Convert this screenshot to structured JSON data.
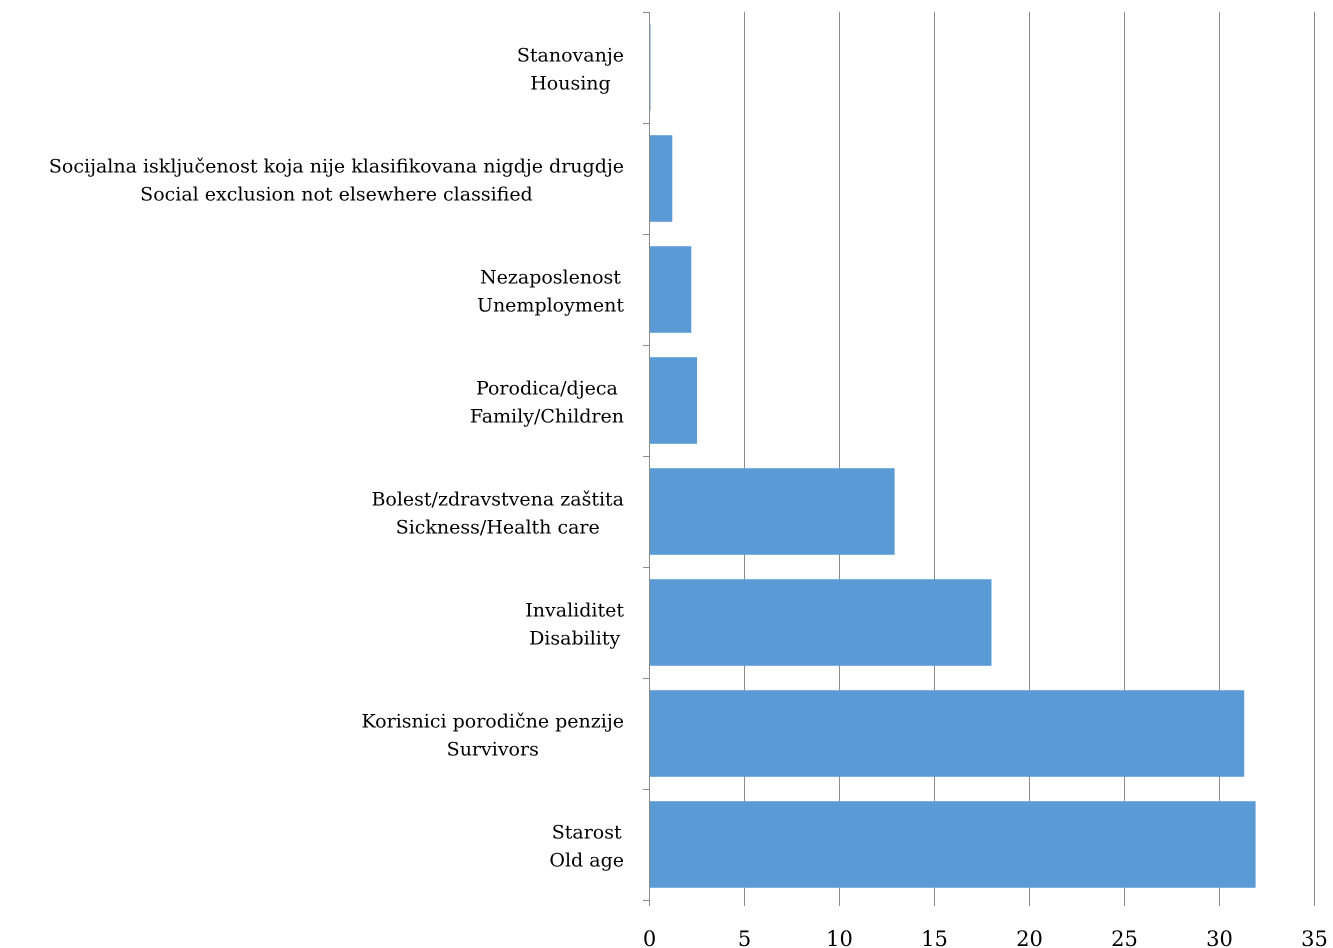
{
  "chart_data": {
    "type": "bar",
    "orientation": "horizontal",
    "title": "",
    "xlabel": "",
    "ylabel": "",
    "xlim": [
      0,
      35
    ],
    "x_ticks": [
      0,
      5,
      10,
      15,
      20,
      25,
      30,
      35
    ],
    "grid": "vertical",
    "legend": "none",
    "bar_color": "#5b9bd5",
    "categories": [
      {
        "line1": "Stanovanje",
        "line2": "Housing",
        "value": 0.05
      },
      {
        "line1": "Socijalna isključenost koja nije klasifikovana nigdje drugdje",
        "line2": "Social exclusion not elsewhere classified",
        "value": 1.2
      },
      {
        "line1": "Nezaposlenost",
        "line2": "Unemployment",
        "value": 2.2
      },
      {
        "line1": "Porodica/djeca",
        "line2": "Family/Children",
        "value": 2.5
      },
      {
        "line1": "Bolest/zdravstvena zaštita",
        "line2": "Sickness/Health care",
        "value": 12.9
      },
      {
        "line1": "Invaliditet",
        "line2": "Disability",
        "value": 18.0
      },
      {
        "line1": "Korisnici porodične penzije",
        "line2": "Survivors",
        "value": 31.3
      },
      {
        "line1": "Starost",
        "line2": "Old age",
        "value": 31.9
      }
    ]
  }
}
